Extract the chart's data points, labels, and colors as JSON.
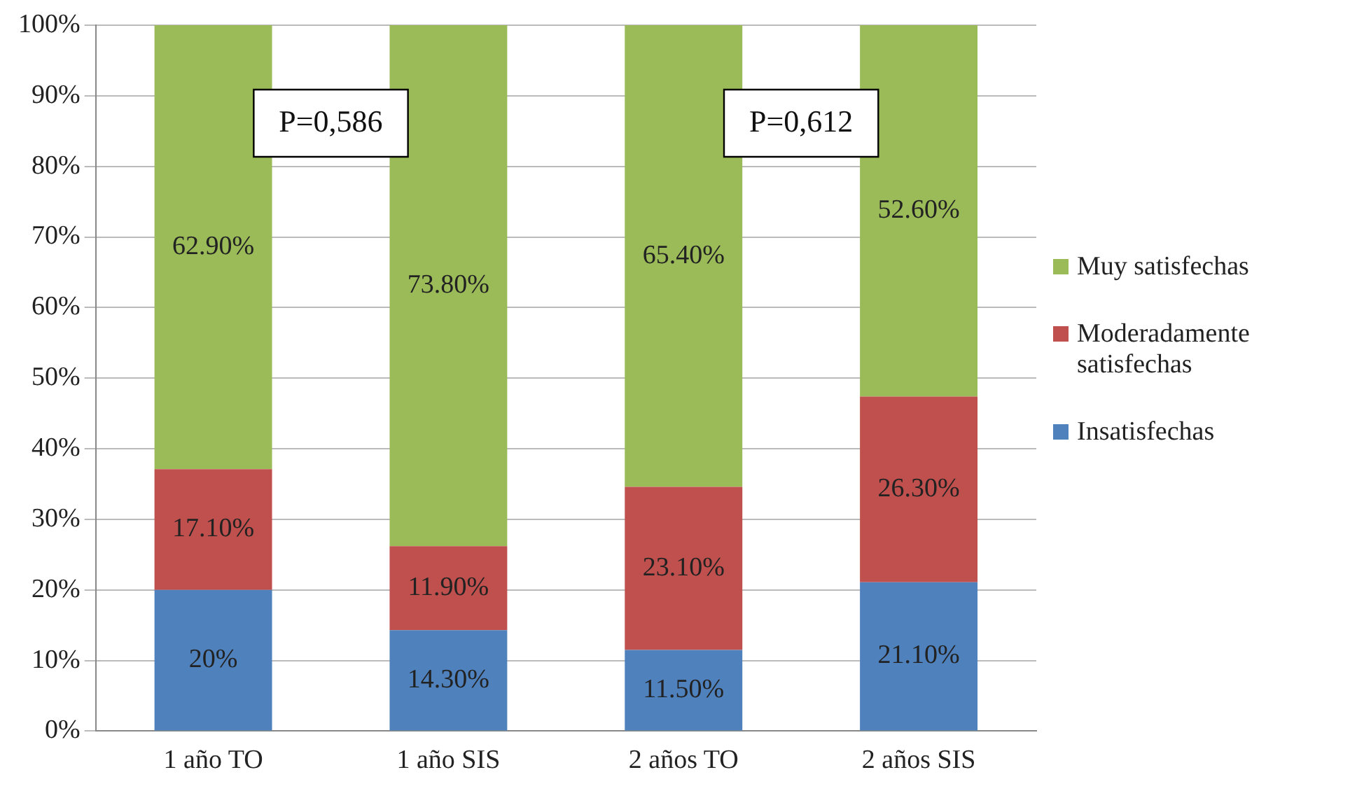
{
  "chart_data": {
    "type": "bar",
    "stacked": true,
    "categories": [
      "1 año TO",
      "1 año SIS",
      "2 años TO",
      "2 años SIS"
    ],
    "series": [
      {
        "name": "Insatisfechas",
        "color": "#4f81bd",
        "values": [
          20,
          14.3,
          11.5,
          21.1
        ],
        "value_labels": [
          "20%",
          "14.30%",
          "11.50%",
          "21.10%"
        ]
      },
      {
        "name": "Moderadamente satisfechas",
        "color": "#c0504d",
        "values": [
          17.1,
          11.9,
          23.1,
          26.3
        ],
        "value_labels": [
          "17.10%",
          "11.90%",
          "23.10%",
          "26.30%"
        ]
      },
      {
        "name": "Muy satisfechas",
        "color": "#9bbb59",
        "values": [
          62.9,
          73.8,
          65.4,
          52.6
        ],
        "value_labels": [
          "62.90%",
          "73.80%",
          "65.40%",
          "52.60%"
        ]
      }
    ],
    "ylim": [
      0,
      100
    ],
    "yticks": [
      {
        "value": 0,
        "label": "0%"
      },
      {
        "value": 10,
        "label": "10%"
      },
      {
        "value": 20,
        "label": "20%"
      },
      {
        "value": 30,
        "label": "30%"
      },
      {
        "value": 40,
        "label": "40%"
      },
      {
        "value": 50,
        "label": "50%"
      },
      {
        "value": 60,
        "label": "60%"
      },
      {
        "value": 70,
        "label": "70%"
      },
      {
        "value": 80,
        "label": "80%"
      },
      {
        "value": 90,
        "label": "90%"
      },
      {
        "value": 100,
        "label": "100%"
      }
    ],
    "grid": "y",
    "legend": "right",
    "annotations": [
      "P=0,586",
      "P=0,612"
    ]
  }
}
